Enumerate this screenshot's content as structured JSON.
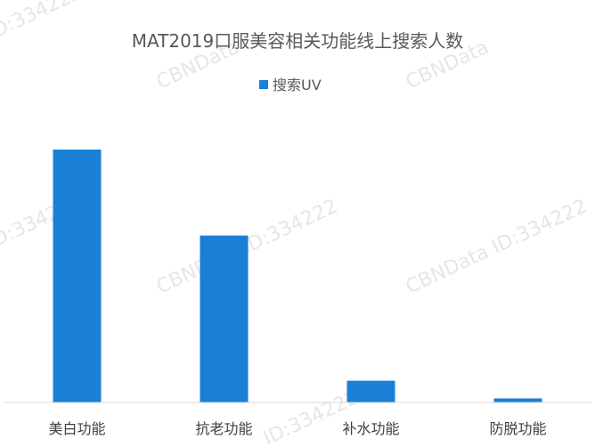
{
  "chart_data": {
    "type": "bar",
    "title": "MAT2019口服美容相关功能线上搜索人数",
    "categories": [
      "美白功能",
      "抗老功能",
      "补水功能",
      "防脱功能"
    ],
    "series": [
      {
        "name": "搜索UV",
        "values": [
          100,
          66,
          8.6,
          1.6
        ]
      }
    ],
    "xlabel": "",
    "ylabel": "",
    "ylim": [
      0,
      100
    ],
    "grid": false,
    "legend_position": "top-center",
    "colors": {
      "bar": "#1a7fd6",
      "axis": "#d9d9d9",
      "text": "#595959"
    }
  },
  "watermarks": [
    "ID:334222",
    "CBNData ID:334222",
    "CBNData ID:334222",
    "CBNData",
    "CBNData",
    "ID:334222",
    "ID:334222"
  ]
}
